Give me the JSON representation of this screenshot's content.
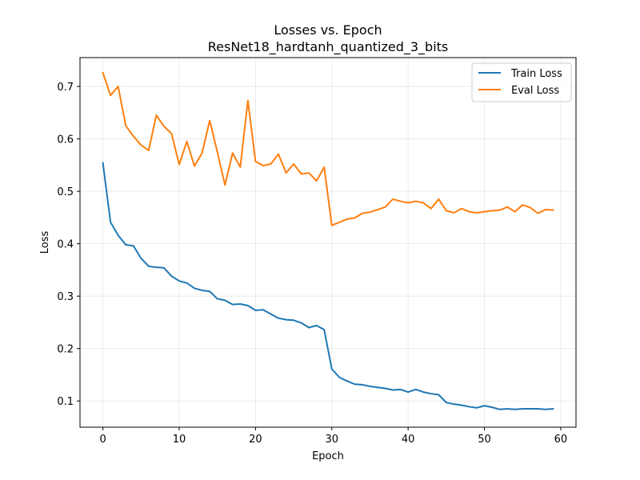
{
  "chart_data": {
    "type": "line",
    "title": "Losses vs. Epoch",
    "subtitle": "ResNet18_hardtanh_quantized_3_bits",
    "xlabel": "Epoch",
    "ylabel": "Loss",
    "xlim": [
      -3,
      62
    ],
    "ylim": [
      0.05,
      0.755
    ],
    "xticks": [
      0,
      10,
      20,
      30,
      40,
      50,
      60
    ],
    "yticks": [
      0.1,
      0.2,
      0.3,
      0.4,
      0.5,
      0.6,
      0.7
    ],
    "grid": true,
    "legend_position": "top-right",
    "series": [
      {
        "name": "Train Loss",
        "color": "#1f77b4",
        "x": [
          0,
          1,
          2,
          3,
          4,
          5,
          6,
          7,
          8,
          9,
          10,
          11,
          12,
          13,
          14,
          15,
          16,
          17,
          18,
          19,
          20,
          21,
          22,
          23,
          24,
          25,
          26,
          27,
          28,
          29,
          30,
          31,
          32,
          33,
          34,
          35,
          36,
          37,
          38,
          39,
          40,
          41,
          42,
          43,
          44,
          45,
          46,
          47,
          48,
          49,
          50,
          51,
          52,
          53,
          54,
          55,
          56,
          57,
          58,
          59
        ],
        "values": [
          0.554,
          0.441,
          0.416,
          0.398,
          0.396,
          0.372,
          0.357,
          0.355,
          0.354,
          0.338,
          0.329,
          0.325,
          0.315,
          0.311,
          0.309,
          0.295,
          0.292,
          0.284,
          0.285,
          0.282,
          0.273,
          0.274,
          0.266,
          0.258,
          0.255,
          0.254,
          0.249,
          0.24,
          0.244,
          0.236,
          0.161,
          0.145,
          0.138,
          0.132,
          0.131,
          0.128,
          0.126,
          0.124,
          0.121,
          0.122,
          0.117,
          0.122,
          0.117,
          0.114,
          0.112,
          0.097,
          0.094,
          0.092,
          0.089,
          0.087,
          0.091,
          0.088,
          0.084,
          0.085,
          0.084,
          0.085,
          0.085,
          0.085,
          0.084,
          0.085
        ]
      },
      {
        "name": "Eval Loss",
        "color": "#ff7f0e",
        "x": [
          0,
          1,
          2,
          3,
          4,
          5,
          6,
          7,
          8,
          9,
          10,
          11,
          12,
          13,
          14,
          15,
          16,
          17,
          18,
          19,
          20,
          21,
          22,
          23,
          24,
          25,
          26,
          27,
          28,
          29,
          30,
          31,
          32,
          33,
          34,
          35,
          36,
          37,
          38,
          39,
          40,
          41,
          42,
          43,
          44,
          45,
          46,
          47,
          48,
          49,
          50,
          51,
          52,
          53,
          54,
          55,
          56,
          57,
          58,
          59
        ],
        "values": [
          0.726,
          0.683,
          0.7,
          0.625,
          0.605,
          0.588,
          0.578,
          0.645,
          0.624,
          0.61,
          0.551,
          0.595,
          0.548,
          0.573,
          0.635,
          0.575,
          0.512,
          0.573,
          0.546,
          0.673,
          0.557,
          0.549,
          0.552,
          0.571,
          0.535,
          0.552,
          0.533,
          0.535,
          0.52,
          0.546,
          0.435,
          0.441,
          0.447,
          0.449,
          0.458,
          0.46,
          0.465,
          0.47,
          0.485,
          0.481,
          0.478,
          0.481,
          0.478,
          0.467,
          0.485,
          0.463,
          0.459,
          0.467,
          0.461,
          0.459,
          0.461,
          0.463,
          0.464,
          0.47,
          0.461,
          0.474,
          0.469,
          0.458,
          0.465,
          0.464
        ]
      }
    ]
  }
}
